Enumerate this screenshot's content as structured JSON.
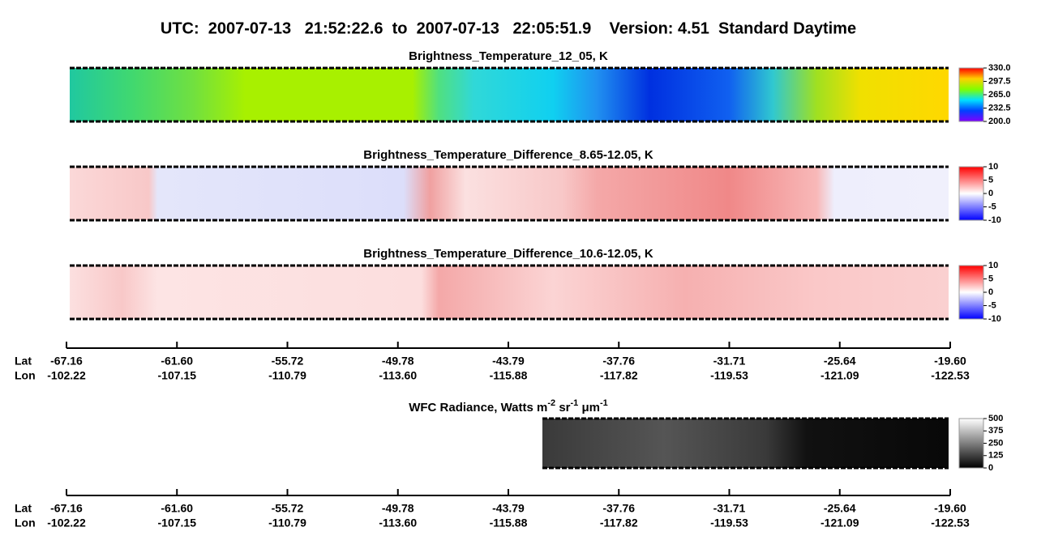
{
  "header": {
    "title": "UTC:  2007-07-13   21:52:22.6  to  2007-07-13   22:05:51.9    Version: 4.51  Standard Daytime"
  },
  "panels": [
    {
      "title": "Brightness_Temperature_12_05, K",
      "colorbar_ticks": [
        {
          "value": 330,
          "label": "330.0"
        },
        {
          "value": 297.5,
          "label": "297.5"
        },
        {
          "value": 265,
          "label": "265.0"
        },
        {
          "value": 232.5,
          "label": "232.5"
        },
        {
          "value": 200,
          "label": "200.0"
        }
      ]
    },
    {
      "title": "Brightness_Temperature_Difference_8.65-12.05, K",
      "colorbar_ticks": [
        10,
        5,
        0,
        -5,
        -10
      ]
    },
    {
      "title": "Brightness_Temperature_Difference_10.6-12.05, K",
      "colorbar_ticks": [
        10,
        5,
        0,
        -5,
        -10
      ]
    }
  ],
  "axis": {
    "lat_label": "Lat",
    "lon_label": "Lon",
    "lat": [
      "-67.16",
      "-61.60",
      "-55.72",
      "-49.78",
      "-43.79",
      "-37.76",
      "-31.71",
      "-25.64",
      "-19.60"
    ],
    "lon": [
      "-102.22",
      "-107.15",
      "-110.79",
      "-113.60",
      "-115.88",
      "-117.82",
      "-119.53",
      "-121.09",
      "-122.53"
    ]
  },
  "wfc_panel": {
    "title_parts": [
      "WFC Radiance, Watts m",
      "-2",
      " sr",
      "-1",
      " μm",
      "-1"
    ],
    "colorbar_ticks": [
      500,
      375,
      250,
      125,
      0
    ]
  }
}
